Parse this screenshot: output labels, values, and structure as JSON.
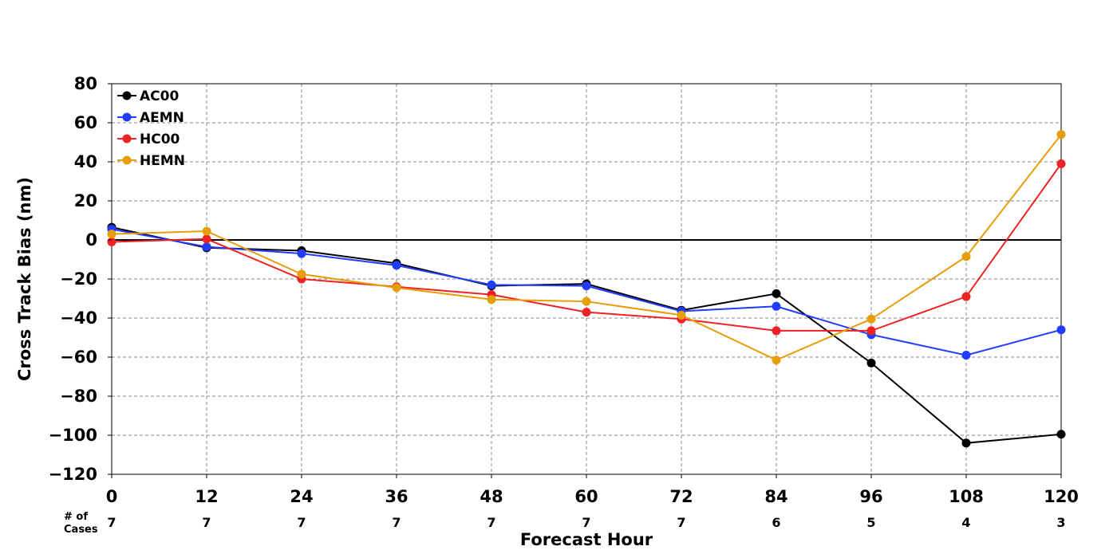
{
  "chart_data": {
    "type": "line",
    "title": "",
    "xlabel": "Forecast Hour",
    "ylabel": "Cross Track Bias (nm)",
    "x": [
      0,
      12,
      24,
      36,
      48,
      60,
      72,
      84,
      96,
      108,
      120
    ],
    "xticks": [
      "0",
      "12",
      "24",
      "36",
      "48",
      "60",
      "72",
      "84",
      "96",
      "108",
      "120"
    ],
    "yticks": [
      "80",
      "60",
      "40",
      "20",
      "0",
      "−20",
      "−40",
      "−60",
      "−80",
      "−100",
      "−120"
    ],
    "ytick_values": [
      80,
      60,
      40,
      20,
      0,
      -20,
      -40,
      -60,
      -80,
      -100,
      -120
    ],
    "xlim": [
      0,
      120
    ],
    "ylim": [
      -120,
      80
    ],
    "grid": true,
    "legend_position": "top-left",
    "cases_title": "# of\nCases",
    "cases": [
      7,
      7,
      7,
      7,
      7,
      7,
      7,
      6,
      5,
      4,
      3
    ],
    "series": [
      {
        "name": "AC00",
        "color": "#000000",
        "values": [
          6.5,
          -4,
          -5.5,
          -12,
          -23.5,
          -22.5,
          -36,
          -27.5,
          -63,
          -104,
          -99.5
        ]
      },
      {
        "name": "AEMN",
        "color": "#1f3cff",
        "values": [
          5.5,
          -3.5,
          -7,
          -13,
          -23,
          -23.5,
          -36.5,
          -34,
          -48.5,
          -59,
          -46
        ]
      },
      {
        "name": "HC00",
        "color": "#ee2222",
        "values": [
          -1,
          0.5,
          -20,
          -24,
          -28,
          -37,
          -40.5,
          -46.5,
          -46.5,
          -29,
          39
        ]
      },
      {
        "name": "HEMN",
        "color": "#e69e0a",
        "values": [
          3,
          4.5,
          -17.5,
          -24.5,
          -30.5,
          -31.5,
          -38.5,
          -61.5,
          -40.5,
          -8.5,
          54
        ]
      }
    ]
  }
}
